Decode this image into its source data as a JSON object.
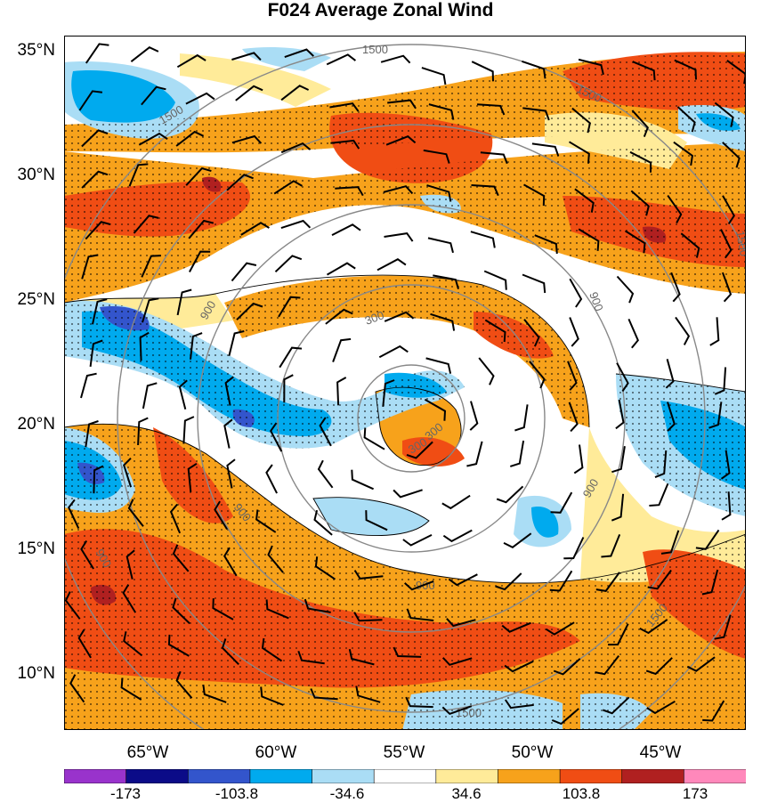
{
  "title": "F024 Average Zonal Wind",
  "lat_labels": [
    "35°N",
    "30°N",
    "25°N",
    "20°N",
    "15°N",
    "10°N"
  ],
  "lon_labels": [
    "65°W",
    "60°W",
    "55°W",
    "50°W",
    "45°W"
  ],
  "contour_labels": [
    "1500",
    "1500",
    "1500",
    "900",
    "900",
    "900",
    "900",
    "300",
    "300",
    "300",
    "1500",
    "1500",
    "900",
    "900",
    "1500"
  ],
  "colorbar": {
    "tick_labels": [
      "-173",
      "-103.8",
      "-34.6",
      "34.6",
      "103.8",
      "173"
    ],
    "colors": [
      "#9933cc",
      "#0b0b88",
      "#3355cc",
      "#00aaee",
      "#aaddf5",
      "#ffffff",
      "#ffeb99",
      "#f7a21b",
      "#f04d14",
      "#b02020",
      "#ff88bb"
    ]
  },
  "fill_colors": {
    "strong_pos": "#f04d14",
    "mod_pos": "#f7a21b",
    "weak_pos": "#ffeb99",
    "weak_neg": "#aaddf5",
    "mod_neg": "#00aaee",
    "strong_neg": "#3355cc",
    "max_pos": "#b02020"
  }
}
